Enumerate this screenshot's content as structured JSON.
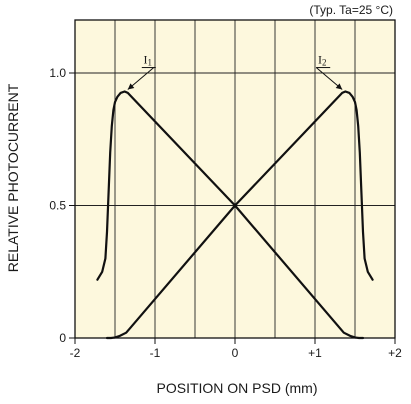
{
  "chart_data": {
    "type": "line",
    "condition": "(Typ. Ta=25 °C)",
    "xlabel": "POSITION ON PSD (mm)",
    "ylabel": "RELATIVE PHOTOCURRENT",
    "xlim": [
      -2,
      2
    ],
    "ylim": [
      0,
      1.2
    ],
    "x_ticks": [
      -2,
      -1,
      0,
      1,
      2
    ],
    "x_tick_labels": [
      "-2",
      "-1",
      "0",
      "+1",
      "+2"
    ],
    "y_ticks": [
      0,
      0.5,
      1.0
    ],
    "y_tick_labels": [
      "0",
      "0.5",
      "1.0"
    ],
    "grid": true,
    "background_color": "#fdf8dd",
    "line_color": "#111111",
    "series": [
      {
        "name": "I1",
        "label": "I",
        "subscript": "1",
        "x": [
          -1.72,
          -1.66,
          -1.62,
          -1.6,
          -1.58,
          -1.56,
          -1.54,
          -1.52,
          -1.5,
          -1.47,
          -1.43,
          -1.38,
          -1.34,
          0,
          1.36,
          1.44,
          1.48,
          1.5,
          1.52,
          1.55,
          1.6
        ],
        "y": [
          0.22,
          0.25,
          0.3,
          0.4,
          0.55,
          0.7,
          0.8,
          0.86,
          0.89,
          0.91,
          0.925,
          0.93,
          0.925,
          0.5,
          0.02,
          0.008,
          0.004,
          0.002,
          0.001,
          0.0,
          0.0
        ]
      },
      {
        "name": "I2",
        "label": "I",
        "subscript": "2",
        "x": [
          -1.6,
          -1.55,
          -1.52,
          -1.5,
          -1.48,
          -1.44,
          -1.36,
          0,
          1.34,
          1.38,
          1.43,
          1.47,
          1.5,
          1.52,
          1.54,
          1.56,
          1.58,
          1.6,
          1.62,
          1.66,
          1.72
        ],
        "y": [
          0.0,
          0.0,
          0.001,
          0.002,
          0.004,
          0.008,
          0.02,
          0.5,
          0.925,
          0.93,
          0.925,
          0.91,
          0.89,
          0.86,
          0.8,
          0.7,
          0.55,
          0.4,
          0.3,
          0.25,
          0.22
        ]
      }
    ],
    "annotations": [
      {
        "target_series": "I1",
        "at_x": -1.34,
        "at_y": 0.93
      },
      {
        "target_series": "I2",
        "at_x": 1.34,
        "at_y": 0.93
      }
    ]
  }
}
